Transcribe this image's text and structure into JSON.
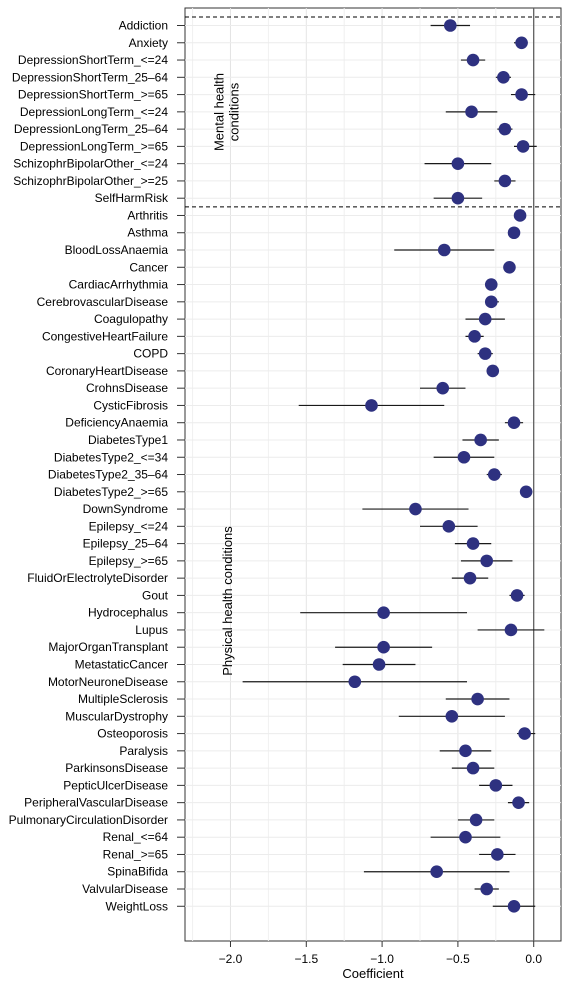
{
  "chart_data": {
    "type": "forest",
    "xlabel": "Coefficient",
    "xlim": [
      -2.3,
      0.18
    ],
    "xticks": [
      -2.0,
      -1.5,
      -1.0,
      -0.5,
      0.0
    ],
    "x_tick_labels": [
      "−2.0",
      "−1.5",
      "−1.0",
      "−0.5",
      "0.0"
    ],
    "reference_line_x": 0,
    "grid": true,
    "point_color": "#2e3180",
    "groups": [
      {
        "label": "Mental health\nconditions",
        "start": 0,
        "end": 10
      },
      {
        "label": "Physical health conditions",
        "start": 11,
        "end": 52
      }
    ],
    "rows": [
      {
        "label": "Addiction",
        "estimate": -0.55,
        "low": -0.68,
        "high": -0.42
      },
      {
        "label": "Anxiety",
        "estimate": -0.08,
        "low": -0.13,
        "high": -0.04
      },
      {
        "label": "DepressionShortTerm_<=24",
        "estimate": -0.4,
        "low": -0.48,
        "high": -0.32
      },
      {
        "label": "DepressionShortTerm_25–64",
        "estimate": -0.2,
        "low": -0.25,
        "high": -0.15
      },
      {
        "label": "DepressionShortTerm_>=65",
        "estimate": -0.08,
        "low": -0.15,
        "high": 0.01
      },
      {
        "label": "DepressionLongTerm_<=24",
        "estimate": -0.41,
        "low": -0.58,
        "high": -0.24
      },
      {
        "label": "DepressionLongTerm_25–64",
        "estimate": -0.19,
        "low": -0.24,
        "high": -0.14
      },
      {
        "label": "DepressionLongTerm_>=65",
        "estimate": -0.07,
        "low": -0.13,
        "high": 0.02
      },
      {
        "label": "SchizophrBipolarOther_<=24",
        "estimate": -0.5,
        "low": -0.72,
        "high": -0.28
      },
      {
        "label": "SchizophrBipolarOther_>=25",
        "estimate": -0.19,
        "low": -0.26,
        "high": -0.12
      },
      {
        "label": "SelfHarmRisk",
        "estimate": -0.5,
        "low": -0.66,
        "high": -0.34
      },
      {
        "label": "Arthritis",
        "estimate": -0.09,
        "low": -0.11,
        "high": -0.07
      },
      {
        "label": "Asthma",
        "estimate": -0.13,
        "low": -0.15,
        "high": -0.11
      },
      {
        "label": "BloodLossAnaemia",
        "estimate": -0.59,
        "low": -0.92,
        "high": -0.26
      },
      {
        "label": "Cancer",
        "estimate": -0.16,
        "low": -0.18,
        "high": -0.14
      },
      {
        "label": "CardiacArrhythmia",
        "estimate": -0.28,
        "low": -0.31,
        "high": -0.25
      },
      {
        "label": "CerebrovascularDisease",
        "estimate": -0.28,
        "low": -0.32,
        "high": -0.23
      },
      {
        "label": "Coagulopathy",
        "estimate": -0.32,
        "low": -0.45,
        "high": -0.19
      },
      {
        "label": "CongestiveHeartFailure",
        "estimate": -0.39,
        "low": -0.45,
        "high": -0.33
      },
      {
        "label": "COPD",
        "estimate": -0.32,
        "low": -0.37,
        "high": -0.27
      },
      {
        "label": "CoronaryHeartDisease",
        "estimate": -0.27,
        "low": -0.3,
        "high": -0.24
      },
      {
        "label": "CrohnsDisease",
        "estimate": -0.6,
        "low": -0.75,
        "high": -0.45
      },
      {
        "label": "CysticFibrosis",
        "estimate": -1.07,
        "low": -1.55,
        "high": -0.59
      },
      {
        "label": "DeficiencyAnaemia",
        "estimate": -0.13,
        "low": -0.19,
        "high": -0.07
      },
      {
        "label": "DiabetesType1",
        "estimate": -0.35,
        "low": -0.47,
        "high": -0.23
      },
      {
        "label": "DiabetesType2_<=34",
        "estimate": -0.46,
        "low": -0.66,
        "high": -0.26
      },
      {
        "label": "DiabetesType2_35–64",
        "estimate": -0.26,
        "low": -0.31,
        "high": -0.21
      },
      {
        "label": "DiabetesType2_>=65",
        "estimate": -0.05,
        "low": -0.09,
        "high": -0.01
      },
      {
        "label": "DownSyndrome",
        "estimate": -0.78,
        "low": -1.13,
        "high": -0.43
      },
      {
        "label": "Epilepsy_<=24",
        "estimate": -0.56,
        "low": -0.75,
        "high": -0.37
      },
      {
        "label": "Epilepsy_25–64",
        "estimate": -0.4,
        "low": -0.52,
        "high": -0.28
      },
      {
        "label": "Epilepsy_>=65",
        "estimate": -0.31,
        "low": -0.48,
        "high": -0.14
      },
      {
        "label": "FluidOrElectrolyteDisorder",
        "estimate": -0.42,
        "low": -0.54,
        "high": -0.3
      },
      {
        "label": "Gout",
        "estimate": -0.11,
        "low": -0.16,
        "high": -0.06
      },
      {
        "label": "Hydrocephalus",
        "estimate": -0.99,
        "low": -1.54,
        "high": -0.44
      },
      {
        "label": "Lupus",
        "estimate": -0.15,
        "low": -0.37,
        "high": 0.07
      },
      {
        "label": "MajorOrganTransplant",
        "estimate": -0.99,
        "low": -1.31,
        "high": -0.67
      },
      {
        "label": "MetastaticCancer",
        "estimate": -1.02,
        "low": -1.26,
        "high": -0.78
      },
      {
        "label": "MotorNeuroneDisease",
        "estimate": -1.18,
        "low": -1.92,
        "high": -0.44
      },
      {
        "label": "MultipleSclerosis",
        "estimate": -0.37,
        "low": -0.58,
        "high": -0.16
      },
      {
        "label": "MuscularDystrophy",
        "estimate": -0.54,
        "low": -0.89,
        "high": -0.19
      },
      {
        "label": "Osteoporosis",
        "estimate": -0.06,
        "low": -0.11,
        "high": 0.01
      },
      {
        "label": "Paralysis",
        "estimate": -0.45,
        "low": -0.62,
        "high": -0.28
      },
      {
        "label": "ParkinsonsDisease",
        "estimate": -0.4,
        "low": -0.54,
        "high": -0.26
      },
      {
        "label": "PepticUlcerDisease",
        "estimate": -0.25,
        "low": -0.36,
        "high": -0.14
      },
      {
        "label": "PeripheralVascularDisease",
        "estimate": -0.1,
        "low": -0.17,
        "high": -0.03
      },
      {
        "label": "PulmonaryCirculationDisorder",
        "estimate": -0.38,
        "low": -0.5,
        "high": -0.26
      },
      {
        "label": "Renal_<=64",
        "estimate": -0.45,
        "low": -0.68,
        "high": -0.22
      },
      {
        "label": "Renal_>=65",
        "estimate": -0.24,
        "low": -0.36,
        "high": -0.12
      },
      {
        "label": "SpinaBifida",
        "estimate": -0.64,
        "low": -1.12,
        "high": -0.16
      },
      {
        "label": "ValvularDisease",
        "estimate": -0.31,
        "low": -0.39,
        "high": -0.23
      },
      {
        "label": "WeightLoss",
        "estimate": -0.13,
        "low": -0.27,
        "high": 0.01
      }
    ]
  }
}
